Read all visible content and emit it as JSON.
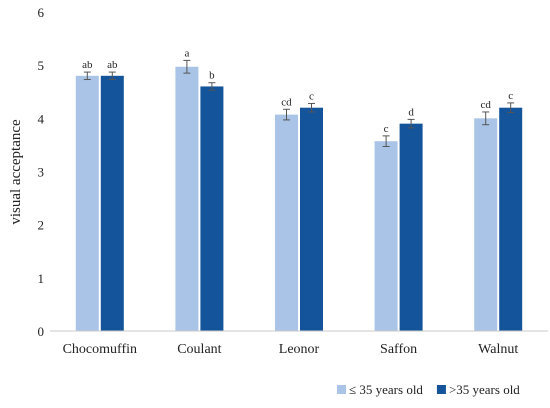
{
  "chart_data": {
    "type": "bar",
    "title": "",
    "xlabel": "",
    "ylabel": "visual acceptance",
    "ylim": [
      0,
      6
    ],
    "yticks": [
      0,
      1,
      2,
      3,
      4,
      5,
      6
    ],
    "grid": false,
    "legend_position": "bottom-right",
    "categories": [
      "Chocomuffin",
      "Coulant",
      "Leonor",
      "Saffon",
      "Walnut"
    ],
    "series": [
      {
        "name": "≤ 35 years old",
        "color": "#a9c4e6",
        "values": [
          4.8,
          4.97,
          4.07,
          3.57,
          4.0
        ],
        "errors": [
          0.07,
          0.12,
          0.1,
          0.1,
          0.12
        ],
        "labels": [
          "ab",
          "a",
          "cd",
          "c",
          "cd"
        ]
      },
      {
        "name": ">35 years old",
        "color": "#14549b",
        "values": [
          4.8,
          4.6,
          4.2,
          3.9,
          4.2
        ],
        "errors": [
          0.07,
          0.07,
          0.08,
          0.08,
          0.09
        ],
        "labels": [
          "ab",
          "b",
          "c",
          "d",
          "c"
        ]
      }
    ]
  }
}
